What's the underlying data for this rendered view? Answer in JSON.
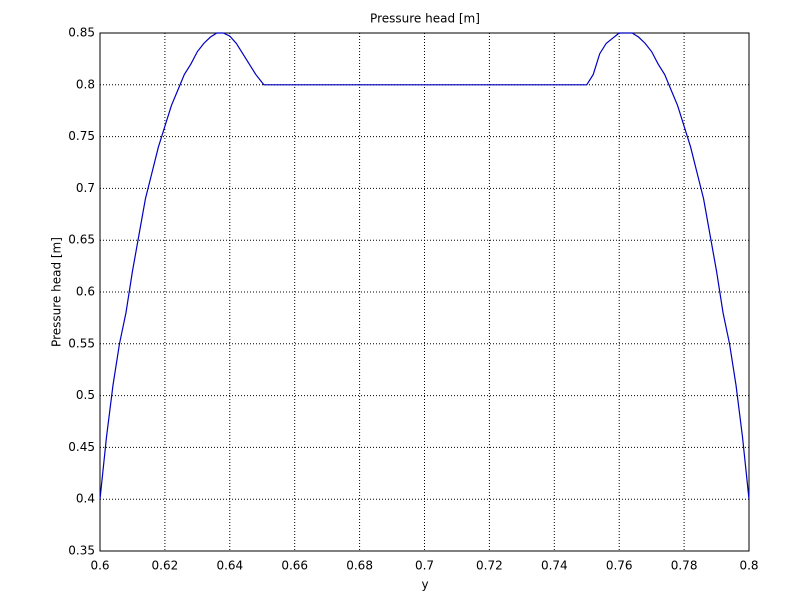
{
  "chart_data": {
    "type": "line",
    "title": "Pressure head [m]",
    "x_label": "y",
    "y_label": "Pressure head [m]",
    "x": [
      0.6,
      0.602,
      0.604,
      0.606,
      0.608,
      0.61,
      0.612,
      0.614,
      0.616,
      0.618,
      0.62,
      0.622,
      0.624,
      0.626,
      0.628,
      0.63,
      0.632,
      0.634,
      0.636,
      0.638,
      0.64,
      0.642,
      0.644,
      0.646,
      0.648,
      0.6505,
      0.75,
      0.752,
      0.754,
      0.756,
      0.758,
      0.76,
      0.762,
      0.764,
      0.766,
      0.768,
      0.77,
      0.772,
      0.774,
      0.776,
      0.778,
      0.78,
      0.782,
      0.784,
      0.786,
      0.788,
      0.79,
      0.792,
      0.794,
      0.796,
      0.798,
      0.8
    ],
    "series": [
      {
        "name": "Pressure head",
        "color": "#0000c0",
        "values": [
          0.4,
          0.46,
          0.51,
          0.55,
          0.58,
          0.62,
          0.655,
          0.69,
          0.715,
          0.74,
          0.76,
          0.78,
          0.795,
          0.81,
          0.82,
          0.832,
          0.84,
          0.846,
          0.85,
          0.85,
          0.847,
          0.84,
          0.83,
          0.82,
          0.81,
          0.8,
          0.8,
          0.81,
          0.83,
          0.84,
          0.845,
          0.85,
          0.85,
          0.85,
          0.846,
          0.84,
          0.832,
          0.82,
          0.81,
          0.795,
          0.78,
          0.76,
          0.74,
          0.715,
          0.69,
          0.655,
          0.62,
          0.58,
          0.55,
          0.51,
          0.46,
          0.4
        ]
      }
    ],
    "xlim": [
      0.6,
      0.8
    ],
    "xticks": [
      0.6,
      0.62,
      0.64,
      0.66,
      0.68,
      0.7,
      0.72,
      0.74,
      0.76,
      0.78,
      0.8
    ],
    "ylim": [
      0.35,
      0.85
    ],
    "yticks": [
      0.35,
      0.4,
      0.45,
      0.5,
      0.55,
      0.6,
      0.65,
      0.7,
      0.75,
      0.8,
      0.85
    ],
    "grid": true
  }
}
